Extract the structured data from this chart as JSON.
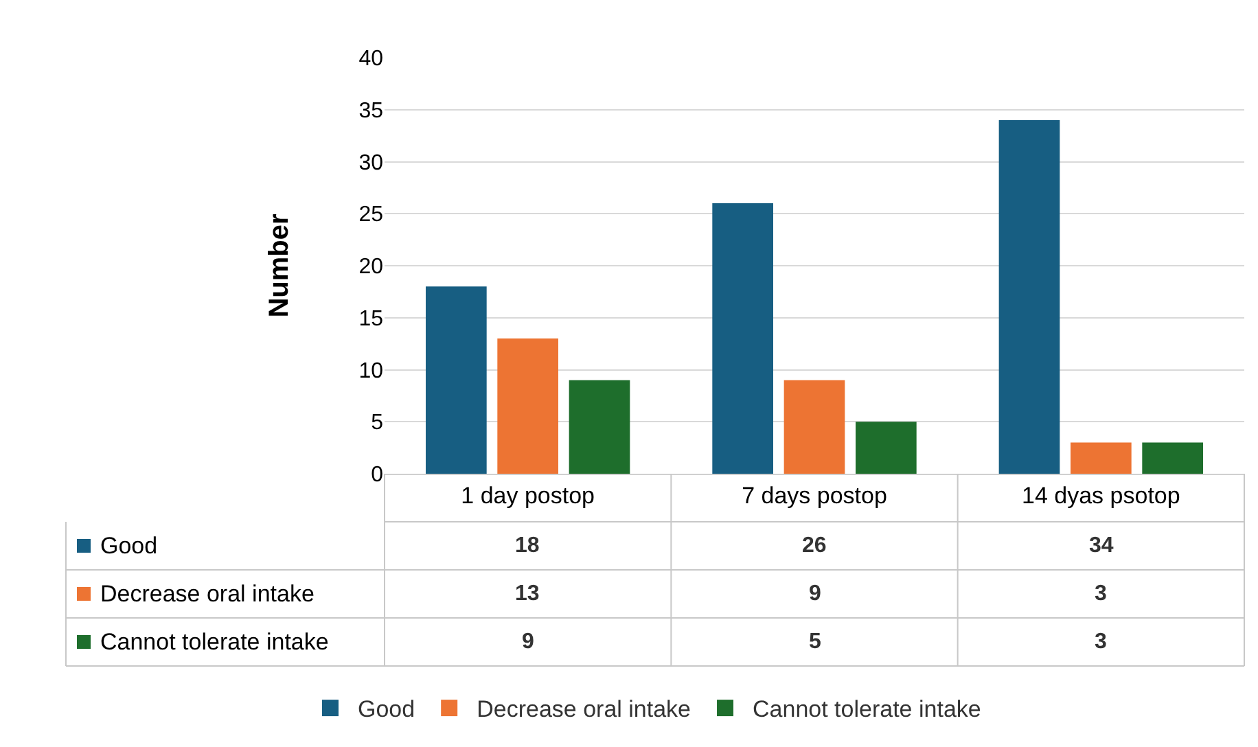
{
  "chart_data": {
    "type": "bar",
    "ylabel": "Number",
    "categories": [
      "1 day postop",
      "7 days postop",
      "14 dyas psotop"
    ],
    "series": [
      {
        "name": "Good",
        "color": "#175e82",
        "values": [
          18,
          26,
          34
        ]
      },
      {
        "name": "Decrease oral intake",
        "color": "#ed7433",
        "values": [
          13,
          9,
          3
        ]
      },
      {
        "name": "Cannot tolerate intake",
        "color": "#1e6e2c",
        "values": [
          9,
          5,
          3
        ]
      }
    ],
    "ylim": [
      0,
      40
    ],
    "yticks": [
      0,
      5,
      10,
      15,
      20,
      25,
      30,
      35,
      40
    ],
    "grid": "y",
    "legend": "bottom",
    "data_labels": true
  }
}
